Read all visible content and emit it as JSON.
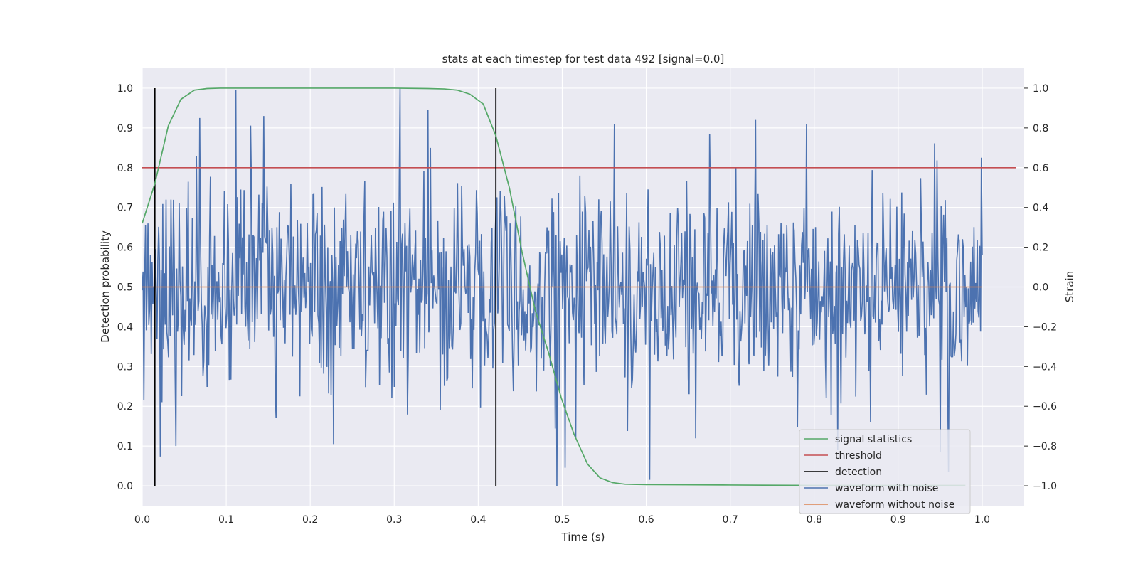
{
  "chart_data": {
    "type": "line",
    "title": "stats at each timestep for test data 492 [signal=0.0]",
    "xlabel": "Time (s)",
    "ylabel": "Detection probability",
    "y2label": "Strain",
    "xlim": [
      0.0,
      1.05
    ],
    "ylim": [
      -0.05,
      1.05
    ],
    "y2lim": [
      -1.1,
      1.1
    ],
    "xticks": [
      "0.0",
      "0.1",
      "0.2",
      "0.3",
      "0.4",
      "0.5",
      "0.6",
      "0.7",
      "0.8",
      "0.9",
      "1.0"
    ],
    "yticks": [
      "0.0",
      "0.1",
      "0.2",
      "0.3",
      "0.4",
      "0.5",
      "0.6",
      "0.7",
      "0.8",
      "0.9",
      "1.0"
    ],
    "y2ticks": [
      "−1.0",
      "−0.8",
      "−0.6",
      "−0.4",
      "−0.2",
      "0.0",
      "0.2",
      "0.4",
      "0.6",
      "0.8",
      "1.0"
    ],
    "grid": true,
    "legend_position": "bottom-right",
    "legend": [
      "signal statistics",
      "threshold",
      "detection",
      "waveform with noise",
      "waveform without noise"
    ],
    "colors": {
      "signal_statistics": "#55a868",
      "threshold": "#c44e52",
      "detection": "#000000",
      "waveform_with_noise": "#4c72b0",
      "waveform_without_noise": "#dd8452",
      "plot_background": "#eaeaf2"
    },
    "signal_statistics": {
      "x": [
        0.0,
        0.015,
        0.031,
        0.046,
        0.062,
        0.077,
        0.093,
        0.108,
        0.124,
        0.2,
        0.3,
        0.34,
        0.36,
        0.375,
        0.39,
        0.406,
        0.421,
        0.437,
        0.452,
        0.468,
        0.483,
        0.499,
        0.514,
        0.53,
        0.545,
        0.56,
        0.575,
        0.6,
        0.7,
        0.8,
        0.9,
        0.98
      ],
      "y": [
        0.66,
        0.76,
        0.905,
        0.972,
        0.995,
        0.999,
        1.0,
        1.0,
        1.0,
        1.0,
        1.0,
        0.999,
        0.998,
        0.995,
        0.985,
        0.96,
        0.88,
        0.75,
        0.59,
        0.44,
        0.34,
        0.22,
        0.13,
        0.055,
        0.02,
        0.008,
        0.004,
        0.003,
        0.002,
        0.001,
        0.001,
        0.001
      ]
    },
    "threshold": {
      "y": 0.8,
      "x_range": [
        0.0,
        1.04
      ]
    },
    "detections": [
      {
        "x": 0.015,
        "y_range": [
          0.0,
          1.0
        ]
      },
      {
        "x": 0.421,
        "y_range": [
          0.0,
          1.0
        ]
      }
    ],
    "waveform_with_noise": {
      "x_range": [
        0.0,
        1.0
      ],
      "samples": 1024,
      "seed": 492,
      "noise_std": 0.27,
      "extremes": [
        {
          "x": 0.002,
          "y": -0.57
        },
        {
          "x": 0.04,
          "y": -0.8
        },
        {
          "x": 0.068,
          "y": 0.85
        },
        {
          "x": 0.145,
          "y": 0.86
        },
        {
          "x": 0.228,
          "y": -0.79
        },
        {
          "x": 0.307,
          "y": 1.0
        },
        {
          "x": 0.34,
          "y": 0.89
        },
        {
          "x": 0.494,
          "y": -1.0
        },
        {
          "x": 0.604,
          "y": -0.97
        },
        {
          "x": 0.73,
          "y": 0.84
        },
        {
          "x": 0.95,
          "y": -0.83
        },
        {
          "x": 0.96,
          "y": -0.93
        },
        {
          "x": 0.999,
          "y": 0.65
        }
      ]
    },
    "waveform_without_noise": {
      "y": 0.0,
      "x_range": [
        0.0,
        1.0
      ]
    }
  }
}
